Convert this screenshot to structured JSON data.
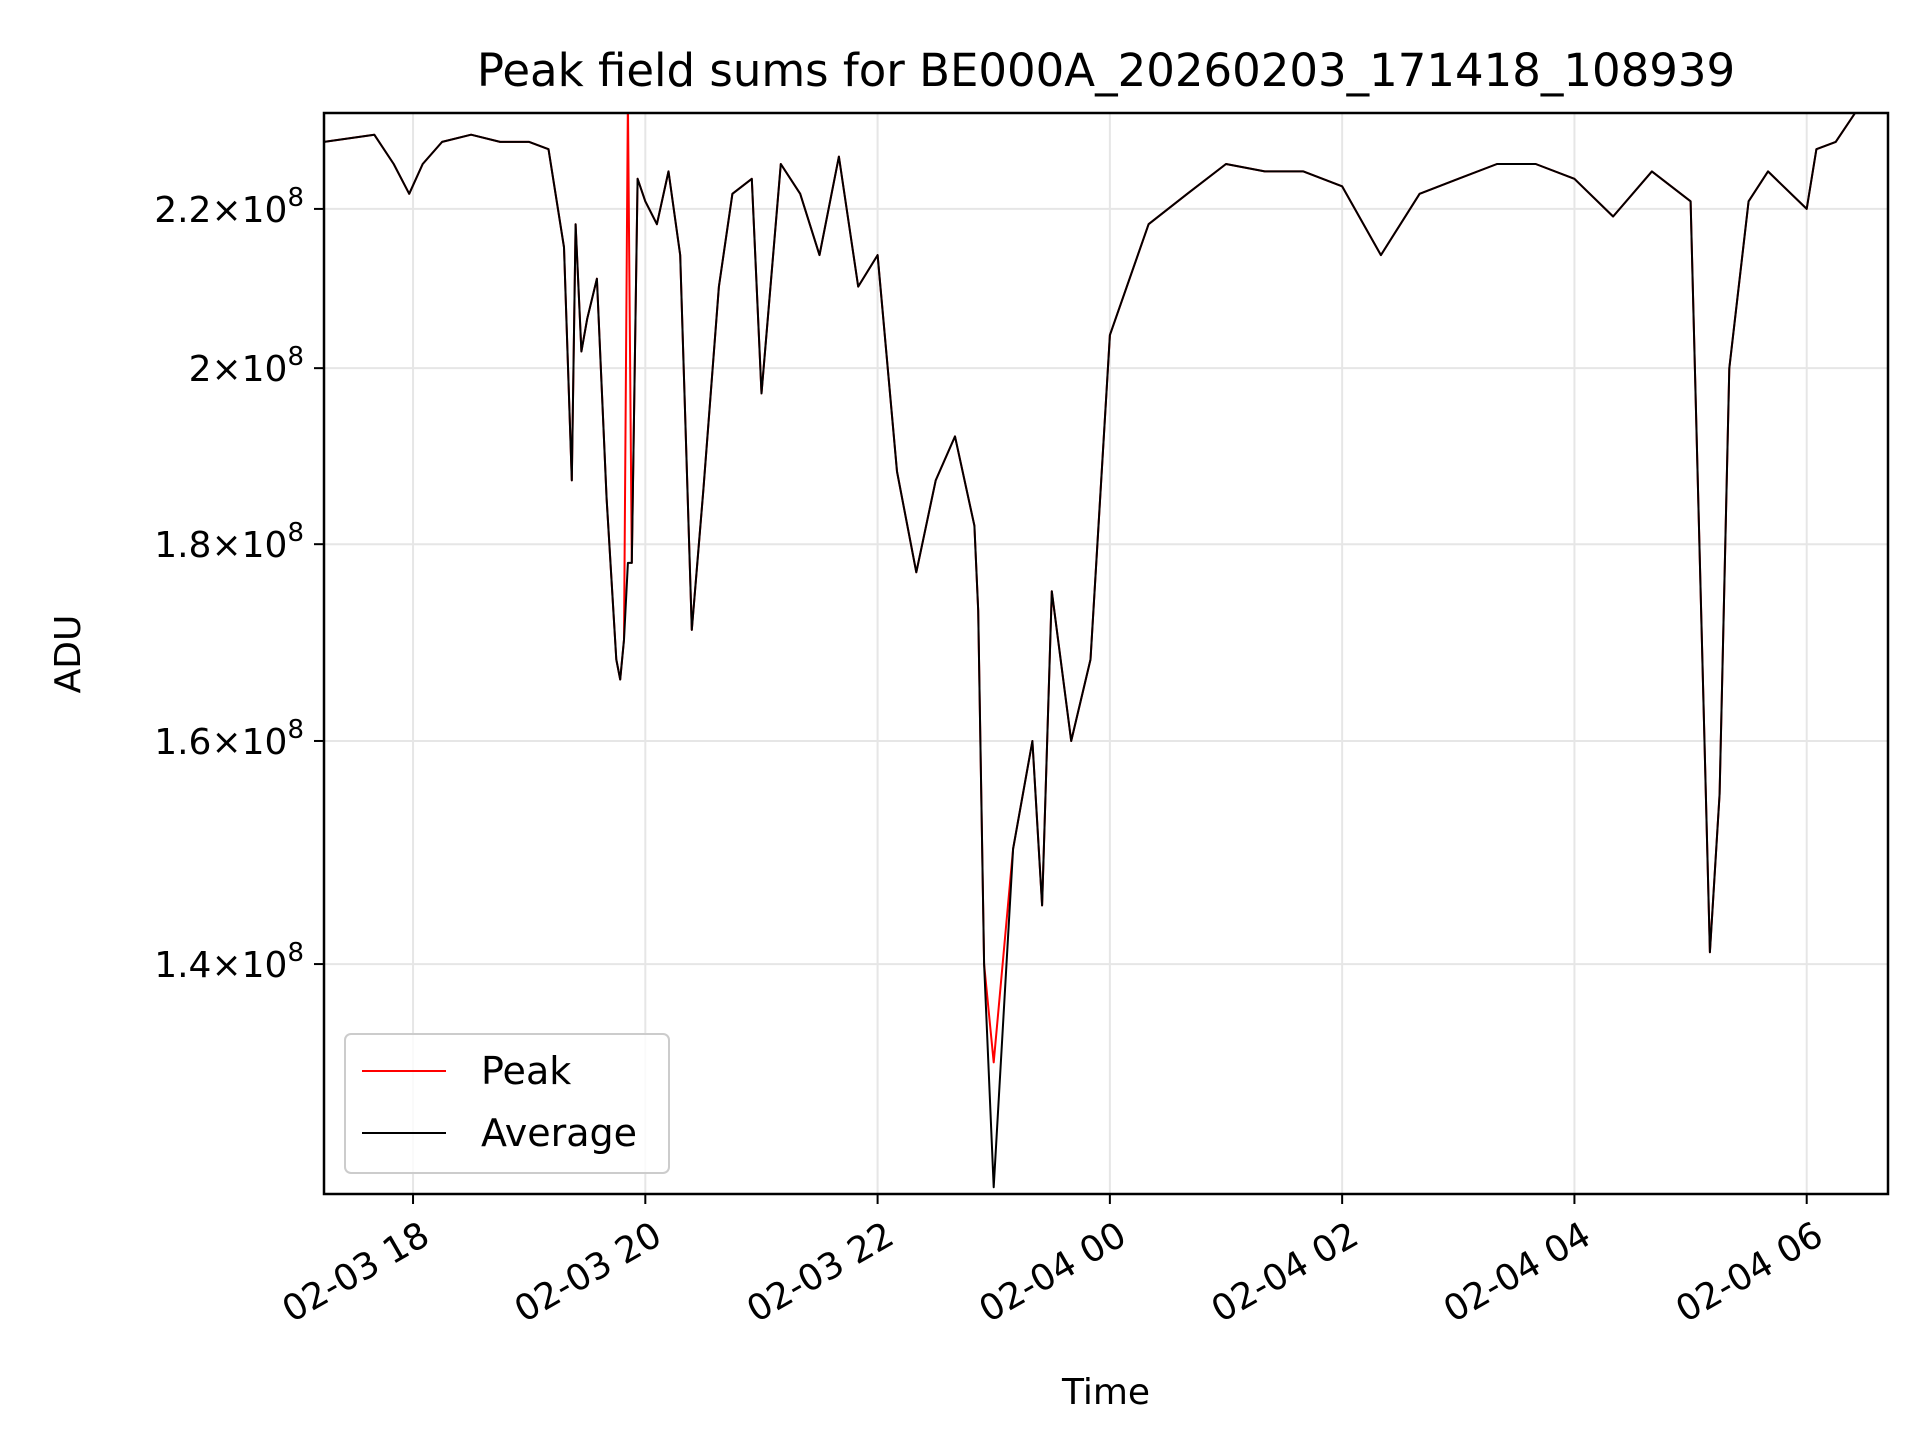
{
  "chart_data": {
    "type": "line",
    "title": "Peak field sums for BE000A_20260203_171418_108939",
    "xlabel": "Time",
    "ylabel": "ADU",
    "yscale": "log",
    "ylim": [
      122000000,
      233000000
    ],
    "xlim": [
      "2026-02-03T17:14:00",
      "2026-02-04T06:42:00"
    ],
    "grid": true,
    "legend_position": "lower-left",
    "x_ticks": [
      {
        "value": "2026-02-03T18:00:00",
        "label": "02-03 18"
      },
      {
        "value": "2026-02-03T20:00:00",
        "label": "02-03 20"
      },
      {
        "value": "2026-02-03T22:00:00",
        "label": "02-03 22"
      },
      {
        "value": "2026-02-04T00:00:00",
        "label": "02-04 00"
      },
      {
        "value": "2026-02-04T02:00:00",
        "label": "02-04 02"
      },
      {
        "value": "2026-02-04T04:00:00",
        "label": "02-04 04"
      },
      {
        "value": "2026-02-04T06:00:00",
        "label": "02-04 06"
      }
    ],
    "y_ticks": [
      {
        "value": 140000000,
        "mantissa": "1.4",
        "base": "10",
        "exp": "8"
      },
      {
        "value": 160000000,
        "mantissa": "1.6",
        "base": "10",
        "exp": "8"
      },
      {
        "value": 180000000,
        "mantissa": "1.8",
        "base": "10",
        "exp": "8"
      },
      {
        "value": 200000000,
        "mantissa": "2",
        "base": "10",
        "exp": "8"
      },
      {
        "value": 220000000,
        "mantissa": "2.2",
        "base": "10",
        "exp": "8"
      }
    ],
    "series": [
      {
        "name": "Peak",
        "color": "#ff0000",
        "x": [
          "2026-02-03T17:14:00",
          "2026-02-03T17:40:00",
          "2026-02-03T17:50:00",
          "2026-02-03T17:58:00",
          "2026-02-03T18:05:00",
          "2026-02-03T18:15:00",
          "2026-02-03T18:30:00",
          "2026-02-03T18:45:00",
          "2026-02-03T19:00:00",
          "2026-02-03T19:10:00",
          "2026-02-03T19:18:00",
          "2026-02-03T19:22:00",
          "2026-02-03T19:24:00",
          "2026-02-03T19:27:00",
          "2026-02-03T19:30:00",
          "2026-02-03T19:35:00",
          "2026-02-03T19:40:00",
          "2026-02-03T19:45:00",
          "2026-02-03T19:47:00",
          "2026-02-03T19:49:00",
          "2026-02-03T19:51:00",
          "2026-02-03T19:53:00",
          "2026-02-03T19:56:00",
          "2026-02-03T20:00:00",
          "2026-02-03T20:06:00",
          "2026-02-03T20:12:00",
          "2026-02-03T20:18:00",
          "2026-02-03T20:24:00",
          "2026-02-03T20:30:00",
          "2026-02-03T20:38:00",
          "2026-02-03T20:45:00",
          "2026-02-03T20:55:00",
          "2026-02-03T21:00:00",
          "2026-02-03T21:10:00",
          "2026-02-03T21:20:00",
          "2026-02-03T21:30:00",
          "2026-02-03T21:40:00",
          "2026-02-03T21:50:00",
          "2026-02-03T22:00:00",
          "2026-02-03T22:10:00",
          "2026-02-03T22:20:00",
          "2026-02-03T22:30:00",
          "2026-02-03T22:40:00",
          "2026-02-03T22:50:00",
          "2026-02-03T22:52:00",
          "2026-02-03T22:55:00",
          "2026-02-03T23:00:00",
          "2026-02-03T23:10:00",
          "2026-02-03T23:20:00",
          "2026-02-03T23:25:00",
          "2026-02-03T23:30:00",
          "2026-02-03T23:40:00",
          "2026-02-03T23:50:00",
          "2026-02-04T00:00:00",
          "2026-02-04T00:20:00",
          "2026-02-04T00:40:00",
          "2026-02-04T01:00:00",
          "2026-02-04T01:20:00",
          "2026-02-04T01:40:00",
          "2026-02-04T02:00:00",
          "2026-02-04T02:20:00",
          "2026-02-04T02:40:00",
          "2026-02-04T03:00:00",
          "2026-02-04T03:20:00",
          "2026-02-04T03:40:00",
          "2026-02-04T04:00:00",
          "2026-02-04T04:20:00",
          "2026-02-04T04:40:00",
          "2026-02-04T05:00:00",
          "2026-02-04T05:10:00",
          "2026-02-04T05:15:00",
          "2026-02-04T05:20:00",
          "2026-02-04T05:30:00",
          "2026-02-04T05:40:00",
          "2026-02-04T06:00:00",
          "2026-02-04T06:05:00",
          "2026-02-04T06:15:00",
          "2026-02-04T06:25:00",
          "2026-02-04T06:42:00"
        ],
        "y": [
          229000000,
          230000000,
          226000000,
          222000000,
          226000000,
          229000000,
          230000000,
          229000000,
          229000000,
          228000000,
          215000000,
          187000000,
          218000000,
          202000000,
          206000000,
          211000000,
          185000000,
          168000000,
          166000000,
          170000000,
          235000000,
          178000000,
          224000000,
          221000000,
          218000000,
          225000000,
          214000000,
          171000000,
          186000000,
          210000000,
          222000000,
          224000000,
          197000000,
          226000000,
          222000000,
          214000000,
          227000000,
          210000000,
          214000000,
          188000000,
          177000000,
          187000000,
          192000000,
          182000000,
          173000000,
          140000000,
          132000000,
          150000000,
          160000000,
          145000000,
          175000000,
          160000000,
          168000000,
          204000000,
          218000000,
          222000000,
          226000000,
          225000000,
          225000000,
          223000000,
          214000000,
          222000000,
          224000000,
          226000000,
          226000000,
          224000000,
          219000000,
          225000000,
          221000000,
          141000000,
          155000000,
          200000000,
          221000000,
          225000000,
          220000000,
          228000000,
          229000000,
          233000000,
          233000000
        ]
      },
      {
        "name": "Average",
        "color": "#000000",
        "x": [
          "2026-02-03T17:14:00",
          "2026-02-03T17:40:00",
          "2026-02-03T17:50:00",
          "2026-02-03T17:58:00",
          "2026-02-03T18:05:00",
          "2026-02-03T18:15:00",
          "2026-02-03T18:30:00",
          "2026-02-03T18:45:00",
          "2026-02-03T19:00:00",
          "2026-02-03T19:10:00",
          "2026-02-03T19:18:00",
          "2026-02-03T19:22:00",
          "2026-02-03T19:24:00",
          "2026-02-03T19:27:00",
          "2026-02-03T19:30:00",
          "2026-02-03T19:35:00",
          "2026-02-03T19:40:00",
          "2026-02-03T19:45:00",
          "2026-02-03T19:47:00",
          "2026-02-03T19:49:00",
          "2026-02-03T19:51:00",
          "2026-02-03T19:53:00",
          "2026-02-03T19:56:00",
          "2026-02-03T20:00:00",
          "2026-02-03T20:06:00",
          "2026-02-03T20:12:00",
          "2026-02-03T20:18:00",
          "2026-02-03T20:24:00",
          "2026-02-03T20:30:00",
          "2026-02-03T20:38:00",
          "2026-02-03T20:45:00",
          "2026-02-03T20:55:00",
          "2026-02-03T21:00:00",
          "2026-02-03T21:10:00",
          "2026-02-03T21:20:00",
          "2026-02-03T21:30:00",
          "2026-02-03T21:40:00",
          "2026-02-03T21:50:00",
          "2026-02-03T22:00:00",
          "2026-02-03T22:10:00",
          "2026-02-03T22:20:00",
          "2026-02-03T22:30:00",
          "2026-02-03T22:40:00",
          "2026-02-03T22:50:00",
          "2026-02-03T22:52:00",
          "2026-02-03T22:55:00",
          "2026-02-03T23:00:00",
          "2026-02-03T23:10:00",
          "2026-02-03T23:20:00",
          "2026-02-03T23:25:00",
          "2026-02-03T23:30:00",
          "2026-02-03T23:40:00",
          "2026-02-03T23:50:00",
          "2026-02-04T00:00:00",
          "2026-02-04T00:20:00",
          "2026-02-04T00:40:00",
          "2026-02-04T01:00:00",
          "2026-02-04T01:20:00",
          "2026-02-04T01:40:00",
          "2026-02-04T02:00:00",
          "2026-02-04T02:20:00",
          "2026-02-04T02:40:00",
          "2026-02-04T03:00:00",
          "2026-02-04T03:20:00",
          "2026-02-04T03:40:00",
          "2026-02-04T04:00:00",
          "2026-02-04T04:20:00",
          "2026-02-04T04:40:00",
          "2026-02-04T05:00:00",
          "2026-02-04T05:10:00",
          "2026-02-04T05:15:00",
          "2026-02-04T05:20:00",
          "2026-02-04T05:30:00",
          "2026-02-04T05:40:00",
          "2026-02-04T06:00:00",
          "2026-02-04T06:05:00",
          "2026-02-04T06:15:00",
          "2026-02-04T06:25:00",
          "2026-02-04T06:42:00"
        ],
        "y": [
          229000000,
          230000000,
          226000000,
          222000000,
          226000000,
          229000000,
          230000000,
          229000000,
          229000000,
          228000000,
          215000000,
          187000000,
          218000000,
          202000000,
          206000000,
          211000000,
          185000000,
          168000000,
          166000000,
          170000000,
          178000000,
          178000000,
          224000000,
          221000000,
          218000000,
          225000000,
          214000000,
          171000000,
          186000000,
          210000000,
          222000000,
          224000000,
          197000000,
          226000000,
          222000000,
          214000000,
          227000000,
          210000000,
          214000000,
          188000000,
          177000000,
          187000000,
          192000000,
          182000000,
          173000000,
          140000000,
          122500000,
          150000000,
          160000000,
          145000000,
          175000000,
          160000000,
          168000000,
          204000000,
          218000000,
          222000000,
          226000000,
          225000000,
          225000000,
          223000000,
          214000000,
          222000000,
          224000000,
          226000000,
          226000000,
          224000000,
          219000000,
          225000000,
          221000000,
          141000000,
          155000000,
          200000000,
          221000000,
          225000000,
          220000000,
          228000000,
          229000000,
          233000000,
          233000000
        ]
      }
    ]
  }
}
